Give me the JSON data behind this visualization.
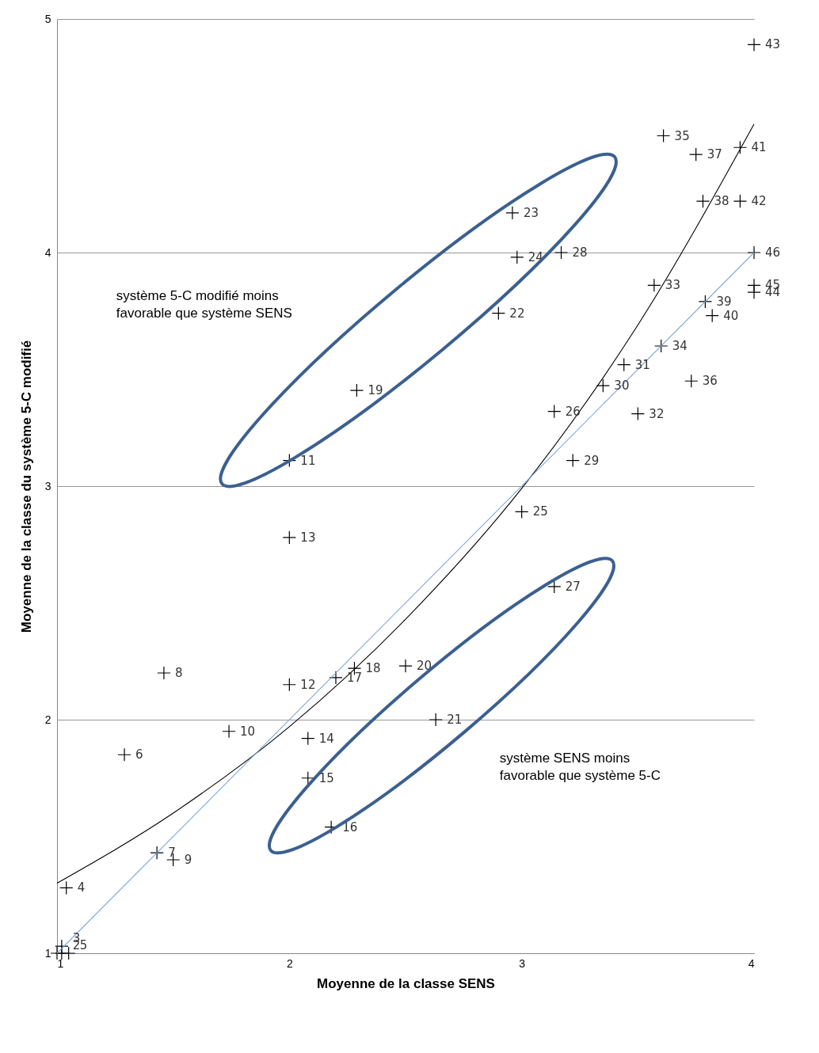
{
  "chart_data": {
    "type": "scatter",
    "xlabel": "Moyenne de la classe SENS",
    "ylabel": "Moyenne de la classe du système 5-C modifié",
    "xlim": [
      1,
      4
    ],
    "ylim": [
      1,
      5
    ],
    "xticks": [
      1,
      2,
      3,
      4
    ],
    "yticks": [
      1,
      2,
      3,
      4,
      5
    ],
    "grid": "y",
    "marker": "cross",
    "series": [
      {
        "color": "#000000",
        "x": [
          1.0,
          1.02,
          1.02,
          1.04,
          1.05,
          1.29,
          1.43,
          1.46,
          1.5,
          1.74,
          2.0,
          2.0,
          2.0,
          2.08,
          2.08,
          2.18,
          2.2,
          2.28,
          2.29,
          2.5,
          2.63,
          2.9,
          2.96,
          2.98,
          3.0,
          3.14,
          3.14,
          3.17,
          3.22,
          3.35,
          3.44,
          3.5,
          3.57,
          3.6,
          3.61,
          3.73,
          3.75,
          3.78,
          3.79,
          3.82,
          3.94,
          3.94,
          4.0,
          4.0,
          4.0,
          4.0
        ],
        "values": [
          1.0,
          1.0,
          1.03,
          1.28,
          1.0,
          1.85,
          1.43,
          2.2,
          1.4,
          1.95,
          3.11,
          2.15,
          2.78,
          1.92,
          1.75,
          1.54,
          2.18,
          2.22,
          3.41,
          2.23,
          2.0,
          3.74,
          4.17,
          3.98,
          2.89,
          3.32,
          2.57,
          4.0,
          3.11,
          3.43,
          3.52,
          3.31,
          3.86,
          3.6,
          4.5,
          3.45,
          4.42,
          4.22,
          3.79,
          3.73,
          4.45,
          4.22,
          4.89,
          3.83,
          3.86,
          4.0
        ]
      },
      {
        "type": "line",
        "marker": "none",
        "color": "#000000",
        "x": [
          1,
          1.5,
          2,
          2.5,
          3,
          3.5,
          4
        ],
        "values": [
          1.3,
          1.6,
          1.97,
          2.43,
          2.99,
          3.69,
          4.55
        ]
      },
      {
        "type": "line",
        "marker": "none",
        "color": "#7fa8d6",
        "x": [
          1,
          4
        ],
        "values": [
          1,
          4
        ]
      }
    ],
    "annotations": [
      {
        "text": "2",
        "x": 1.02,
        "y": 1.0
      },
      {
        "text": "3",
        "x": 1.02,
        "y": 1.03
      },
      {
        "text": "4",
        "x": 1.04,
        "y": 1.28
      },
      {
        "text": "5",
        "x": 1.05,
        "y": 1.0
      },
      {
        "text": "6",
        "x": 1.29,
        "y": 1.85
      },
      {
        "text": "7",
        "x": 1.43,
        "y": 1.43
      },
      {
        "text": "8",
        "x": 1.46,
        "y": 2.2
      },
      {
        "text": "9",
        "x": 1.5,
        "y": 1.4
      },
      {
        "text": "10",
        "x": 1.74,
        "y": 1.95
      },
      {
        "text": "11",
        "x": 2.0,
        "y": 3.11
      },
      {
        "text": "12",
        "x": 2.0,
        "y": 2.15
      },
      {
        "text": "13",
        "x": 2.0,
        "y": 2.78
      },
      {
        "text": "14",
        "x": 2.08,
        "y": 1.92
      },
      {
        "text": "15",
        "x": 2.08,
        "y": 1.75
      },
      {
        "text": "16",
        "x": 2.18,
        "y": 1.54
      },
      {
        "text": "17",
        "x": 2.2,
        "y": 2.18
      },
      {
        "text": "18",
        "x": 2.28,
        "y": 2.22
      },
      {
        "text": "19",
        "x": 2.29,
        "y": 3.41
      },
      {
        "text": "20",
        "x": 2.5,
        "y": 2.23
      },
      {
        "text": "21",
        "x": 2.63,
        "y": 2.0
      },
      {
        "text": "22",
        "x": 2.9,
        "y": 3.74
      },
      {
        "text": "23",
        "x": 2.96,
        "y": 4.17
      },
      {
        "text": "24",
        "x": 2.98,
        "y": 3.98
      },
      {
        "text": "25",
        "x": 3.0,
        "y": 2.89
      },
      {
        "text": "26",
        "x": 3.14,
        "y": 3.32
      },
      {
        "text": "27",
        "x": 3.14,
        "y": 2.57
      },
      {
        "text": "28",
        "x": 3.17,
        "y": 4.0
      },
      {
        "text": "29",
        "x": 3.22,
        "y": 3.11
      },
      {
        "text": "30",
        "x": 3.35,
        "y": 3.43
      },
      {
        "text": "31",
        "x": 3.44,
        "y": 3.52
      },
      {
        "text": "32",
        "x": 3.5,
        "y": 3.31
      },
      {
        "text": "33",
        "x": 3.57,
        "y": 3.86
      },
      {
        "text": "34",
        "x": 3.6,
        "y": 3.6
      },
      {
        "text": "35",
        "x": 3.61,
        "y": 4.5
      },
      {
        "text": "36",
        "x": 3.73,
        "y": 3.45
      },
      {
        "text": "37",
        "x": 3.75,
        "y": 4.42
      },
      {
        "text": "38",
        "x": 3.78,
        "y": 4.22
      },
      {
        "text": "39",
        "x": 3.79,
        "y": 3.79
      },
      {
        "text": "40",
        "x": 3.82,
        "y": 3.73
      },
      {
        "text": "41",
        "x": 3.94,
        "y": 4.45
      },
      {
        "text": "42",
        "x": 3.94,
        "y": 4.22
      },
      {
        "text": "43",
        "x": 4.0,
        "y": 4.89
      },
      {
        "text": "44",
        "x": 4.0,
        "y": 3.83
      },
      {
        "text": "45",
        "x": 4.0,
        "y": 3.86
      },
      {
        "text": "46",
        "x": 4.0,
        "y": 4.0
      },
      "système  5-C modifié moins favorable que système SENS",
      "système  SENS moins favorable que système 5-C"
    ]
  }
}
